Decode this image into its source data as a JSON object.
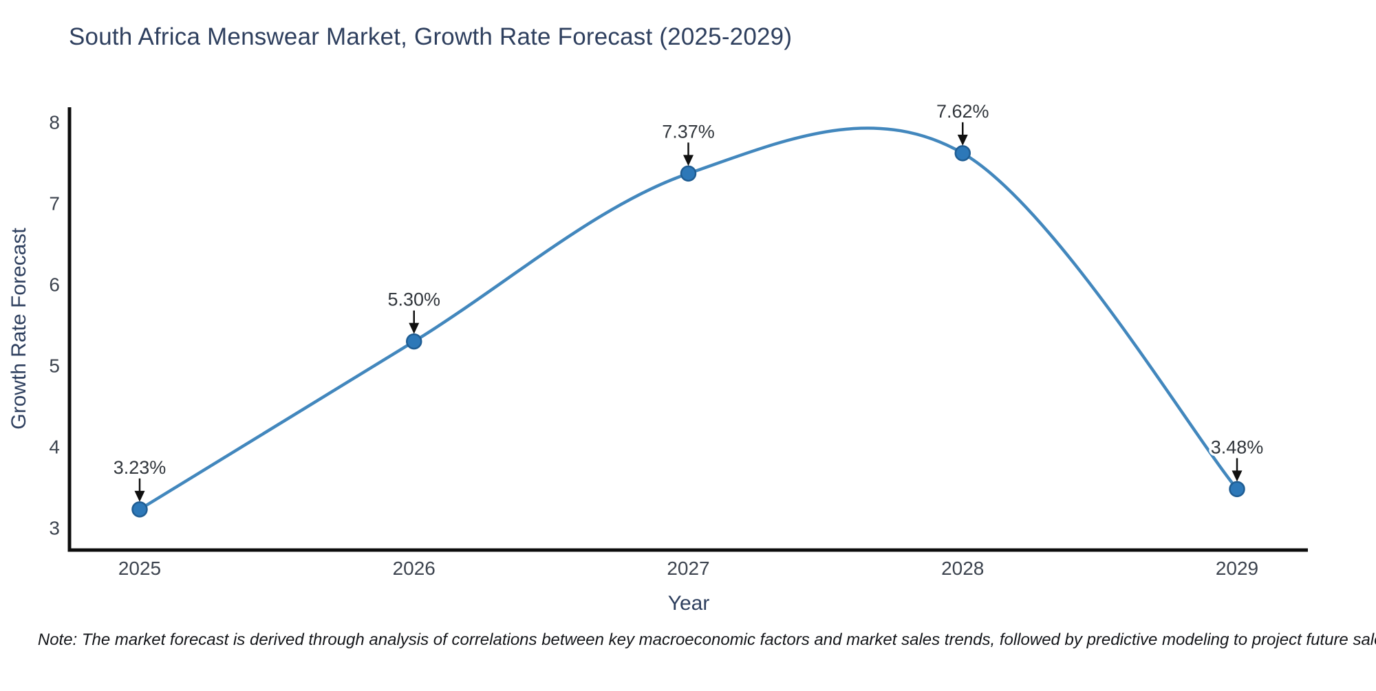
{
  "chart": {
    "note": "Note: The market forecast is derived through analysis of correlations between key macroeconomic factors and market sales trends, followed by predictive modeling to project future sales."
  },
  "chart_data": {
    "type": "line",
    "title": "South Africa Menswear Market, Growth Rate Forecast (2025-2029)",
    "xlabel": "Year",
    "ylabel": "Growth Rate Forecast",
    "categories": [
      "2025",
      "2026",
      "2027",
      "2028",
      "2029"
    ],
    "values": [
      3.23,
      5.3,
      7.37,
      7.62,
      3.48
    ],
    "point_labels": [
      "3.23%",
      "5.30%",
      "7.37%",
      "7.62%",
      "3.48%"
    ],
    "yticks": [
      3,
      4,
      5,
      6,
      7,
      8
    ],
    "ylim": [
      2.73,
      8.16
    ],
    "grid": false,
    "legend": "none",
    "smooth": true,
    "colors": {
      "line": "#4287bd",
      "marker_fill": "#2d78b8",
      "marker_edge": "#1f5d93",
      "axis": "#0d0d0d",
      "arrow": "#101010",
      "tick_text": "#3c434e",
      "label_text": "#30353b"
    }
  }
}
